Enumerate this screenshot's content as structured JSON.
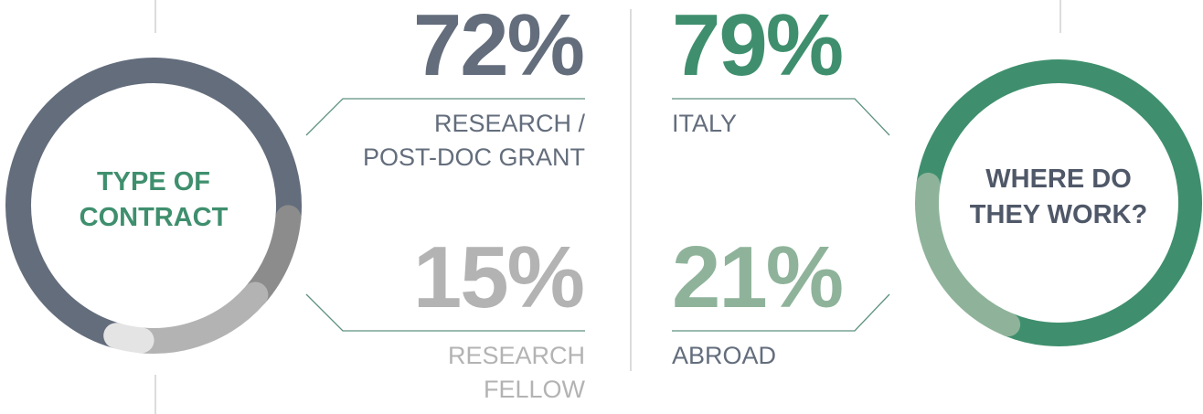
{
  "chart_data": [
    {
      "type": "donut",
      "title": [
        "TYPE OF",
        "CONTRACT"
      ],
      "categories": [
        [
          "RESEARCH /",
          "POST-DOC GRANT"
        ],
        null,
        [
          "RESEARCH",
          "FELLOW"
        ],
        null
      ],
      "values": [
        72,
        10,
        15,
        3
      ],
      "value_labels": [
        "72%",
        null,
        "15%",
        null
      ],
      "colors": [
        "#636d7c",
        "#8c8c8c",
        "#b3b3b3",
        "#e4e4e4"
      ]
    },
    {
      "type": "donut",
      "title": [
        "WHERE DO",
        "THEY WORK?"
      ],
      "categories": [
        [
          "ITALY"
        ],
        [
          "ABROAD"
        ]
      ],
      "values": [
        79,
        21
      ],
      "value_labels": [
        "79%",
        "21%"
      ],
      "colors": [
        "#3f8f6e",
        "#8fb39a"
      ]
    }
  ]
}
